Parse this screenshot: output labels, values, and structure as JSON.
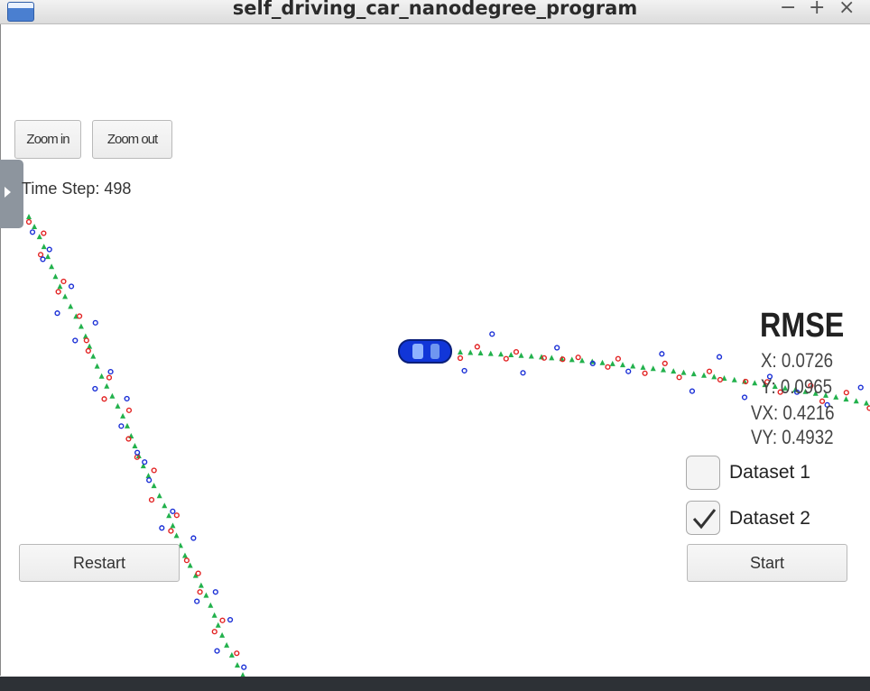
{
  "window": {
    "title": "self_driving_car_nanodegree_program",
    "controls": [
      "−",
      "+",
      "×"
    ]
  },
  "toolbar": {
    "zoom_in_label": "Zoom in",
    "zoom_out_label": "Zoom out"
  },
  "time_step": {
    "label": "Time Step: 498"
  },
  "rmse": {
    "title": "RMSE",
    "x": "X: 0.0726",
    "y": "Y: 0.0965",
    "vx": "VX: 0.4216",
    "vy": "VY: 0.4932"
  },
  "datasets": [
    {
      "label": "Dataset 1",
      "checked": false
    },
    {
      "label": "Dataset 2",
      "checked": true
    }
  ],
  "buttons": {
    "restart_label": "Restart",
    "start_label": "Start"
  },
  "colors": {
    "ground_truth": "#22b14c",
    "radar": "#1a2fd6",
    "lidar": "#e22222",
    "car": "#1136d8"
  }
}
